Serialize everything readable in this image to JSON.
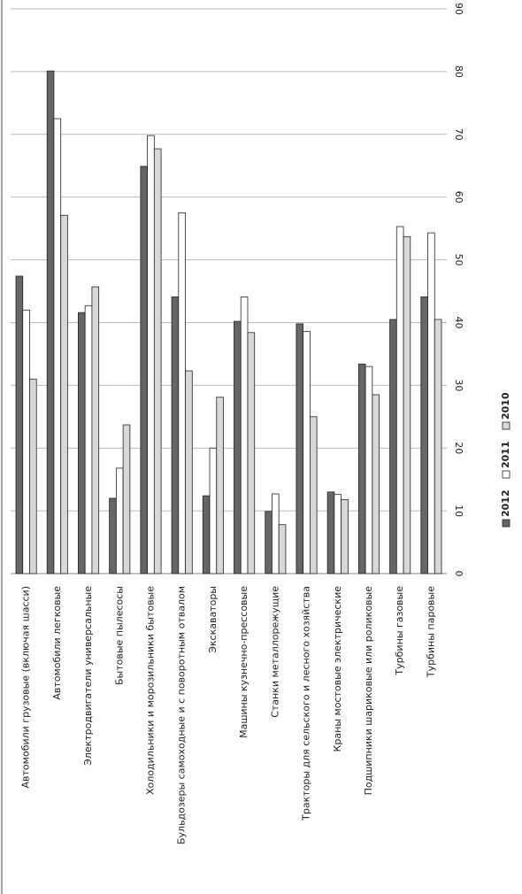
{
  "chart_data": {
    "type": "bar",
    "categories": [
      "Автомобили грузовые (включая шасси)",
      "Автомобили легковые",
      "Электродвигатели универсальные",
      "Бытовые пылесосы",
      "Холодильники и морозильники бытовые",
      "Бульдозеры самоходные и с поворотным отвалом",
      "Экскаваторы",
      "Машины кузнечно-прессовые",
      "Станки металлорежущие",
      "Тракторы для сельского и лесного хозяйства",
      "Краны мостовые электрические",
      "Подшипники шариковые или роликовые",
      "Турбины газовые",
      "Турбины паровые"
    ],
    "series": [
      {
        "name": "2012",
        "color": "#666666",
        "values": [
          47.4,
          80.1,
          41.6,
          12,
          64.9,
          44.1,
          12.4,
          40.2,
          9.9,
          39.8,
          13,
          33.4,
          40.5,
          44.1
        ]
      },
      {
        "name": "2011",
        "color": "#ffffff",
        "values": [
          42,
          72.5,
          42.7,
          16.8,
          69.8,
          57.5,
          20,
          44.1,
          12.7,
          38.6,
          12.6,
          33,
          55.3,
          54.3
        ]
      },
      {
        "name": "2010",
        "color": "#d8d8d8",
        "values": [
          31,
          57.1,
          45.7,
          23.7,
          67.7,
          32.3,
          28.1,
          38.4,
          7.8,
          25,
          11.8,
          28.5,
          53.7,
          40.5
        ]
      }
    ],
    "ylim": [
      0,
      90
    ],
    "yticks": [
      0,
      10,
      20,
      30,
      40,
      50,
      60,
      70,
      80,
      90
    ],
    "grid": true
  }
}
